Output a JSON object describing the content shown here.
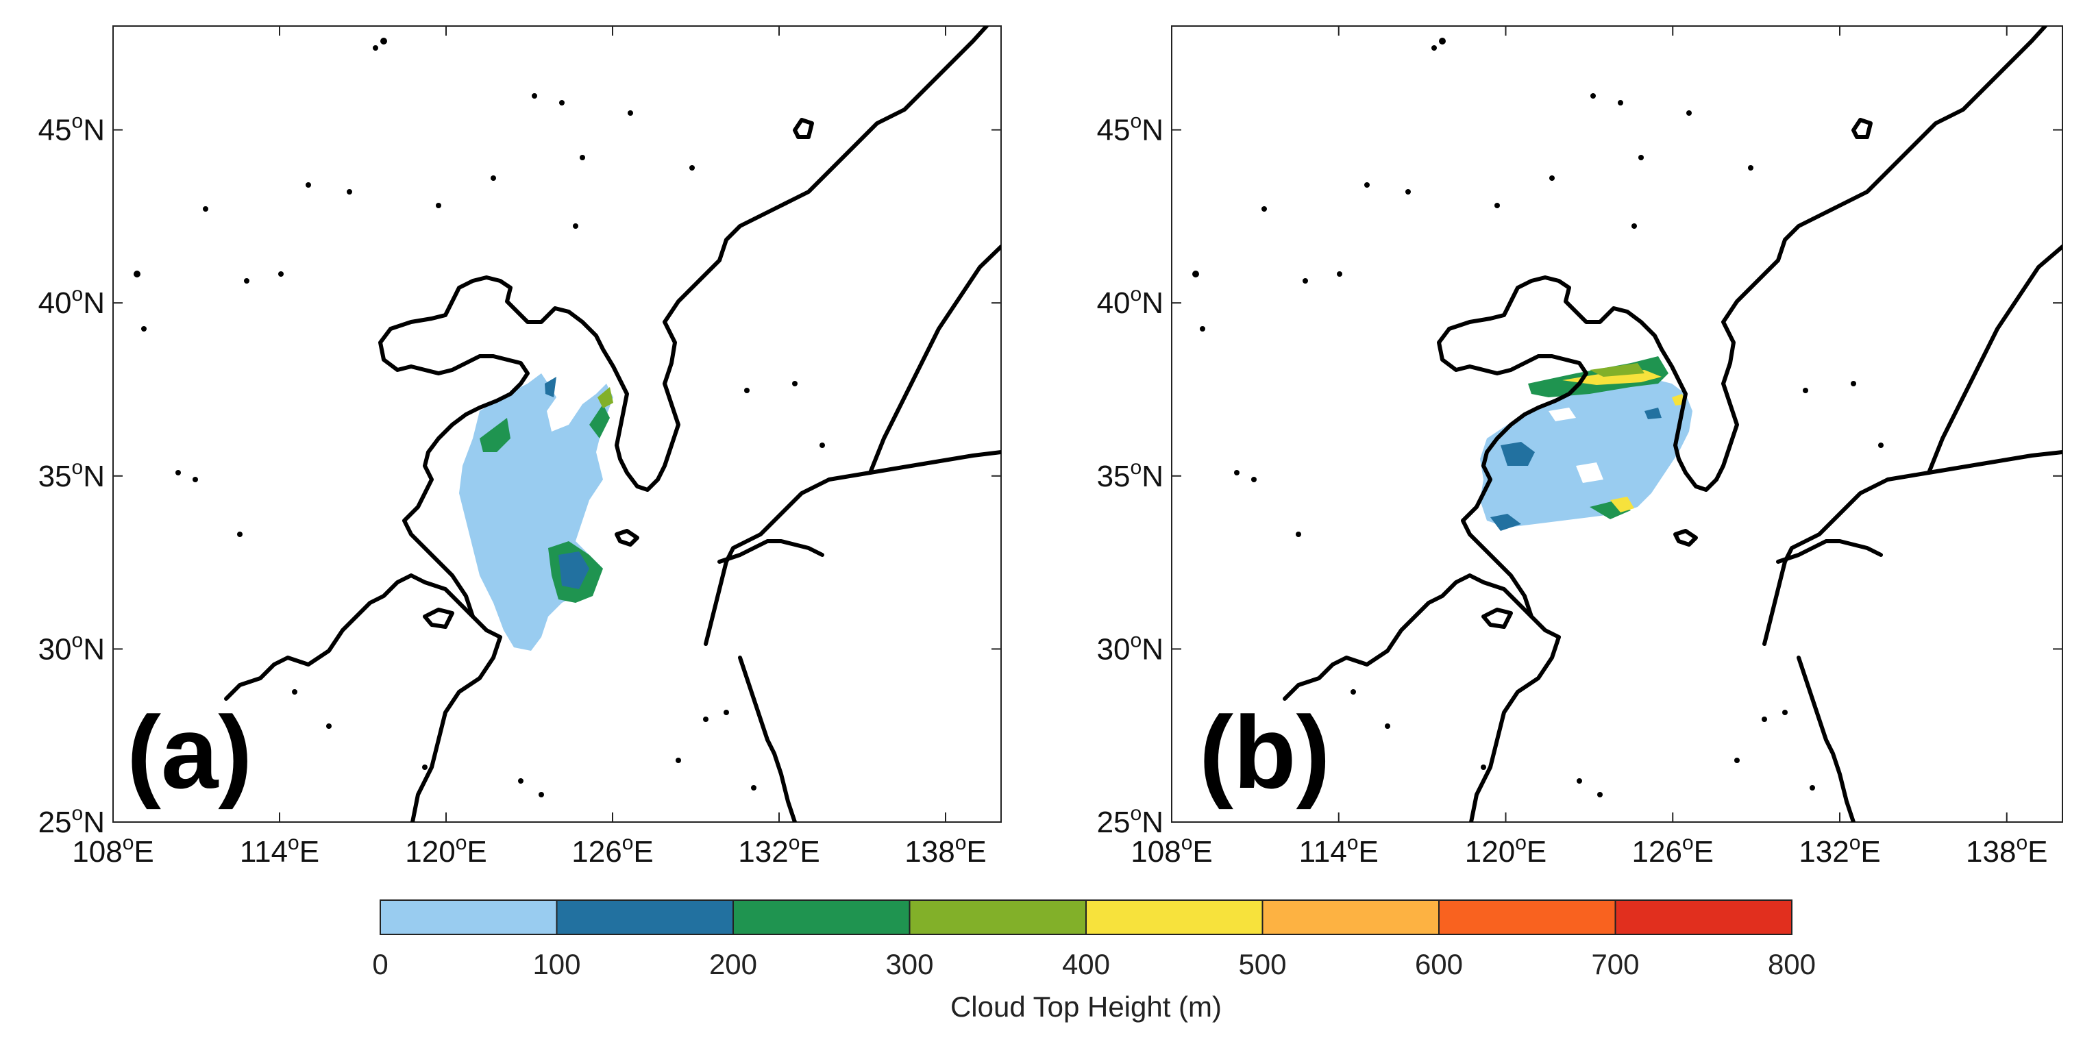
{
  "figure": {
    "panels": [
      {
        "label": "(a)",
        "lat_ticks": [
          "25",
          "30",
          "35",
          "40",
          "45"
        ],
        "lon_ticks": [
          "108",
          "114",
          "120",
          "126",
          "132",
          "138"
        ]
      },
      {
        "label": "(b)",
        "lat_ticks": [
          "25",
          "30",
          "35",
          "40",
          "45"
        ],
        "lon_ticks": [
          "108",
          "114",
          "120",
          "126",
          "132",
          "138"
        ]
      }
    ],
    "lat_suffix": "N",
    "lon_suffix": "E",
    "degree_glyph": "o",
    "colorbar": {
      "title": "Cloud Top Height (m)",
      "ticks": [
        "0",
        "100",
        "200",
        "300",
        "400",
        "500",
        "600",
        "700",
        "800"
      ],
      "colors": [
        "#99ccf0",
        "#2271a0",
        "#1f9450",
        "#82b029",
        "#f7e23c",
        "#fdb242",
        "#f9621f",
        "#e12f1e"
      ]
    }
  }
}
